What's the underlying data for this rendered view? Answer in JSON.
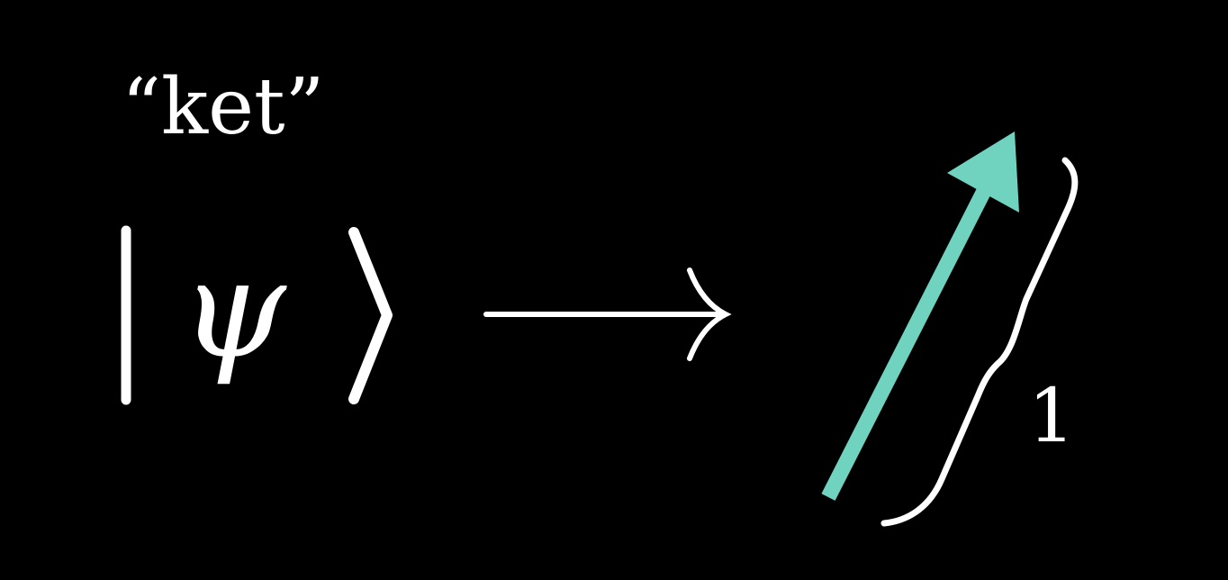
{
  "caption": "“ket”",
  "ket": {
    "symbol": "ψ"
  },
  "vector": {
    "length_label": "1",
    "color": "#6fd3bf"
  },
  "colors": {
    "background": "#000000",
    "foreground": "#ffffff",
    "vector": "#6fd3bf"
  }
}
